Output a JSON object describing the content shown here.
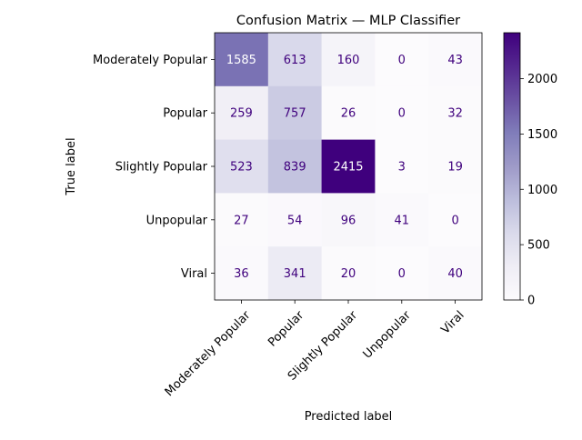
{
  "chart_data": {
    "type": "heatmap",
    "title": "Confusion Matrix — MLP Classifier",
    "xlabel": "Predicted label",
    "ylabel": "True label",
    "rows": [
      "Moderately Popular",
      "Popular",
      "Slightly Popular",
      "Unpopular",
      "Viral"
    ],
    "columns": [
      "Moderately Popular",
      "Popular",
      "Slightly Popular",
      "Unpopular",
      "Viral"
    ],
    "values": [
      [
        1585,
        613,
        160,
        0,
        43
      ],
      [
        259,
        757,
        26,
        0,
        32
      ],
      [
        523,
        839,
        2415,
        3,
        19
      ],
      [
        27,
        54,
        96,
        41,
        0
      ],
      [
        36,
        341,
        20,
        0,
        40
      ]
    ],
    "colormap": "Purples",
    "color_range": [
      0,
      2415
    ],
    "colorbar": {
      "ticks": [
        0,
        500,
        1000,
        1500,
        2000
      ],
      "tick_labels": [
        "0",
        "500",
        "1000",
        "1500",
        "2000"
      ]
    },
    "colors": {
      "light_text": "#ffffff",
      "dark_text": "#3f007d",
      "low": "#fcfbfd",
      "high": "#3f007d"
    },
    "grid": false,
    "legend": "colorbar-right"
  }
}
